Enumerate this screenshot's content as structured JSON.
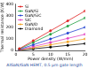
{
  "chart_data": {
    "type": "line",
    "xlabel": "Power density (W/mm)",
    "ylabel": "Thermal resistance (K/W)",
    "annotation": "AlGaN/GaN HEMT, 0.5 µm gate length",
    "x": [
      1,
      5,
      10,
      15,
      20
    ],
    "series": [
      {
        "name": "Si",
        "color": "#e02020",
        "values": [
          17,
          85,
          170,
          255,
          340
        ]
      },
      {
        "name": "GaN/Si",
        "color": "#20a040",
        "values": [
          14,
          70,
          140,
          210,
          280
        ]
      },
      {
        "name": "GaN/SiC",
        "color": "#2040d0",
        "values": [
          10,
          50,
          100,
          150,
          200
        ]
      },
      {
        "name": "SiC",
        "color": "#e040c0",
        "values": [
          7,
          35,
          70,
          105,
          140
        ]
      },
      {
        "name": "GaN/D",
        "color": "#f0a020",
        "values": [
          5,
          25,
          50,
          75,
          100
        ]
      },
      {
        "name": "Diamond",
        "color": "#000000",
        "values": [
          3,
          15,
          30,
          45,
          60
        ]
      }
    ],
    "xlim": [
      0,
      20
    ],
    "xticks": [
      0,
      5,
      10,
      15,
      20
    ],
    "ylim": [
      0,
      400
    ],
    "yticks": [
      0,
      100,
      200,
      300,
      400
    ],
    "grid": false,
    "legend": "upper left",
    "marker": "circle",
    "line_style": "solid"
  }
}
